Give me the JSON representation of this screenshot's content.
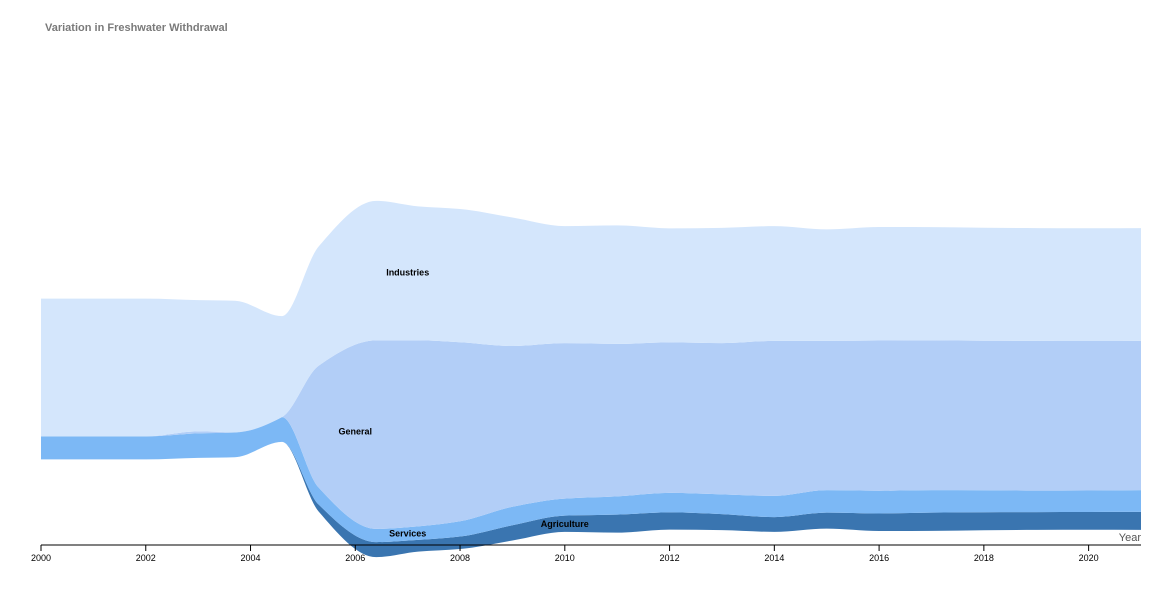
{
  "chart_data": {
    "type": "area",
    "title": "Variation in Freshwater Withdrawal",
    "xlabel": "Year",
    "ylabel": "",
    "x": [
      2000,
      2001,
      2002,
      2003,
      2003.7,
      2004.6,
      2005.3,
      2006.4,
      2007.2,
      2008,
      2009,
      2010,
      2011,
      2012,
      2013,
      2014,
      2015,
      2016,
      2017,
      2018,
      2019,
      2020,
      2021
    ],
    "xlim": [
      2000,
      2021
    ],
    "xticks": [
      2000,
      2002,
      2004,
      2006,
      2008,
      2010,
      2012,
      2014,
      2016,
      2018,
      2020
    ],
    "grid": false,
    "legend": "none",
    "baseline": "centered (streamgraph)",
    "series": [
      {
        "name": "Agriculture",
        "color": "#3a75b0",
        "values": [
          0,
          0,
          0,
          0,
          0,
          0,
          5.6,
          12,
          9.4,
          10,
          12.2,
          13,
          14.4,
          13.8,
          12.8,
          11.8,
          12.8,
          14,
          14.6,
          14.4,
          14.2,
          14.2,
          14.4
        ]
      },
      {
        "name": "Services",
        "color": "#7cb8f5",
        "values": [
          18.4,
          18.4,
          18.4,
          19.6,
          19.8,
          19.8,
          13.6,
          10.6,
          10.8,
          12.2,
          14.8,
          13.6,
          14.6,
          15.6,
          15.8,
          17,
          18,
          18.2,
          18,
          17.6,
          17.2,
          17.2,
          17.4
        ]
      },
      {
        "name": "General",
        "color": "#b2cef7",
        "values": [
          0,
          0,
          0,
          1.6,
          0.2,
          0,
          97.4,
          150.8,
          148.8,
          143.2,
          128.6,
          124.4,
          122,
          120.4,
          121,
          124,
          119.4,
          120.2,
          119.8,
          119.6,
          119.8,
          119.6,
          119.4
        ]
      },
      {
        "name": "Industries",
        "color": "#d4e6fc",
        "values": [
          110.2,
          110.2,
          110.2,
          105,
          105.2,
          80.8,
          95.4,
          111.6,
          107.2,
          106.6,
          102.8,
          93.6,
          94.8,
          91.2,
          92.2,
          91.8,
          89.2,
          90.8,
          90.6,
          90.4,
          90.2,
          90.2,
          90.2
        ]
      }
    ],
    "labels": [
      {
        "text": "Industries",
        "series": "Industries",
        "x": 2007.0
      },
      {
        "text": "General",
        "series": "General",
        "x": 2006.0
      },
      {
        "text": "Services",
        "series": "Services",
        "x": 2007.0
      },
      {
        "text": "Agriculture",
        "series": "Agriculture",
        "x": 2010.0
      }
    ]
  }
}
